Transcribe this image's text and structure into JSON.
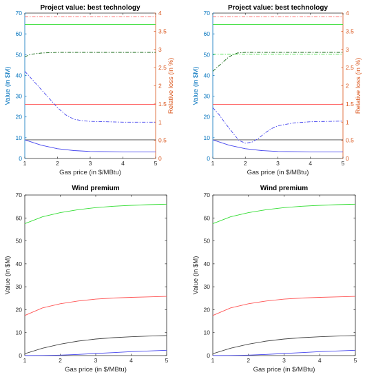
{
  "figure": {
    "background": "#ffffff"
  },
  "colors": {
    "axis_left_top": "#0072bd",
    "axis_right_top": "#d95319",
    "axis_bottom": "#262626",
    "green": "#33dd33",
    "red": "#ff5555",
    "black": "#444444",
    "blue": "#4444ee",
    "dark_green": "#116611"
  },
  "chart_data": [
    {
      "id": "top-left",
      "type": "line",
      "title": "Project value: best technology",
      "xlabel": "Gas price (in $/MBtu)",
      "ylabel": "Value (in $M)",
      "y2label": "Relative loss (in %)",
      "xlim": [
        1,
        5
      ],
      "ylim": [
        0,
        70
      ],
      "y2lim": [
        0,
        4
      ],
      "xticks": [
        "1",
        "2",
        "3",
        "4",
        "5"
      ],
      "yticks": [
        "0",
        "10",
        "20",
        "30",
        "40",
        "50",
        "60",
        "70"
      ],
      "y2ticks": [
        "0",
        "0.5",
        "1",
        "1.5",
        "2",
        "2.5",
        "3",
        "3.5",
        "4"
      ],
      "series": [
        {
          "color": "green",
          "style": "solid",
          "axis": "left",
          "x": [
            1,
            5
          ],
          "y": [
            64.5,
            64.5
          ]
        },
        {
          "color": "red",
          "style": "solid",
          "axis": "left",
          "x": [
            1,
            5
          ],
          "y": [
            26,
            26
          ]
        },
        {
          "color": "black",
          "style": "solid",
          "axis": "left",
          "x": [
            1,
            5
          ],
          "y": [
            9,
            9
          ]
        },
        {
          "color": "blue",
          "style": "solid",
          "axis": "left",
          "x": [
            1,
            1.5,
            2,
            2.5,
            3,
            3.5,
            4,
            4.5,
            5
          ],
          "y": [
            9,
            6.4,
            4.7,
            3.8,
            3.4,
            3.3,
            3.2,
            3.2,
            3.2
          ]
        },
        {
          "color": "red",
          "style": "dashdot",
          "axis": "right",
          "x": [
            1,
            5
          ],
          "y": [
            3.9,
            3.9
          ]
        },
        {
          "color": "dark_green",
          "style": "dashdot",
          "axis": "right",
          "x": [
            1,
            1.2,
            1.5,
            2,
            3,
            4,
            5
          ],
          "y": [
            2.8,
            2.87,
            2.9,
            2.92,
            2.92,
            2.92,
            2.92
          ]
        },
        {
          "color": "blue",
          "style": "dashdot",
          "axis": "right",
          "x": [
            1,
            1.25,
            1.5,
            1.75,
            2,
            2.25,
            2.5,
            2.75,
            3,
            3.5,
            4,
            4.5,
            5
          ],
          "y": [
            2.4,
            2.15,
            1.9,
            1.65,
            1.4,
            1.2,
            1.08,
            1.04,
            1.02,
            1.01,
            1.0,
            1.0,
            1.0
          ]
        }
      ]
    },
    {
      "id": "top-right",
      "type": "line",
      "title": "Project value: best technology",
      "xlabel": "Gas price (in $/MBtu)",
      "ylabel": "Value (in $M)",
      "y2label": "Relative loss (in %)",
      "xlim": [
        1,
        5
      ],
      "ylim": [
        0,
        70
      ],
      "y2lim": [
        0,
        4
      ],
      "xticks": [
        "1",
        "2",
        "3",
        "4",
        "5"
      ],
      "yticks": [
        "0",
        "10",
        "20",
        "30",
        "40",
        "50",
        "60",
        "70"
      ],
      "y2ticks": [
        "0",
        "0.5",
        "1",
        "1.5",
        "2",
        "2.5",
        "3",
        "3.5",
        "4"
      ],
      "series": [
        {
          "color": "green",
          "style": "solid",
          "axis": "left",
          "x": [
            1,
            5
          ],
          "y": [
            64.5,
            64.5
          ]
        },
        {
          "color": "red",
          "style": "solid",
          "axis": "left",
          "x": [
            1,
            5
          ],
          "y": [
            26,
            26
          ]
        },
        {
          "color": "black",
          "style": "solid",
          "axis": "left",
          "x": [
            1,
            5
          ],
          "y": [
            9,
            9
          ]
        },
        {
          "color": "blue",
          "style": "solid",
          "axis": "left",
          "x": [
            1,
            1.5,
            2,
            2.5,
            3,
            3.5,
            4,
            4.5,
            5
          ],
          "y": [
            9,
            6.4,
            4.7,
            3.8,
            3.4,
            3.3,
            3.2,
            3.2,
            3.2
          ]
        },
        {
          "color": "red",
          "style": "dashdot",
          "axis": "right",
          "x": [
            1,
            5
          ],
          "y": [
            3.9,
            3.9
          ]
        },
        {
          "color": "green",
          "style": "dashdot",
          "axis": "right",
          "x": [
            1,
            5
          ],
          "y": [
            2.87,
            2.87
          ]
        },
        {
          "color": "dark_green",
          "style": "dashdot",
          "axis": "right",
          "x": [
            1,
            1.25,
            1.5,
            1.75,
            2,
            2.5,
            3,
            4,
            5
          ],
          "y": [
            2.4,
            2.6,
            2.8,
            2.9,
            2.92,
            2.92,
            2.92,
            2.92,
            2.92
          ]
        },
        {
          "color": "blue",
          "style": "dashdot",
          "axis": "right",
          "x": [
            1,
            1.2,
            1.4,
            1.6,
            1.8,
            2,
            2.2,
            2.4,
            2.6,
            2.8,
            3,
            3.5,
            4,
            4.5,
            5
          ],
          "y": [
            1.4,
            1.2,
            0.95,
            0.72,
            0.5,
            0.42,
            0.45,
            0.55,
            0.7,
            0.82,
            0.9,
            0.98,
            1.01,
            1.02,
            1.03
          ]
        }
      ]
    },
    {
      "id": "bottom-left",
      "type": "line",
      "title": "Wind premium",
      "xlabel": "Gas price (in $/MBtu)",
      "ylabel": "Value (in $M)",
      "xlim": [
        1,
        5
      ],
      "ylim": [
        0,
        70
      ],
      "xticks": [
        "1",
        "2",
        "3",
        "4",
        "5"
      ],
      "yticks": [
        "0",
        "10",
        "20",
        "30",
        "40",
        "50",
        "60",
        "70"
      ],
      "series": [
        {
          "color": "green",
          "style": "solid",
          "axis": "left",
          "x": [
            1,
            1.5,
            2,
            2.5,
            3,
            3.5,
            4,
            4.5,
            5
          ],
          "y": [
            57.5,
            60.5,
            62.3,
            63.6,
            64.5,
            65.1,
            65.5,
            65.8,
            66
          ]
        },
        {
          "color": "red",
          "style": "solid",
          "axis": "left",
          "x": [
            1,
            1.5,
            2,
            2.5,
            3,
            3.5,
            4,
            4.5,
            5
          ],
          "y": [
            17.5,
            20.8,
            22.6,
            23.8,
            24.6,
            25.1,
            25.4,
            25.6,
            25.8
          ]
        },
        {
          "color": "black",
          "style": "solid",
          "axis": "left",
          "x": [
            1,
            1.5,
            2,
            2.5,
            3,
            3.5,
            4,
            4.5,
            5
          ],
          "y": [
            0.8,
            3.2,
            5.0,
            6.3,
            7.2,
            7.8,
            8.2,
            8.5,
            8.7
          ]
        },
        {
          "color": "blue",
          "style": "solid",
          "axis": "left",
          "x": [
            1,
            1.5,
            2,
            2.5,
            3,
            3.5,
            4,
            4.5,
            5
          ],
          "y": [
            0,
            0.05,
            0.2,
            0.5,
            0.9,
            1.3,
            1.7,
            2.0,
            2.3
          ]
        }
      ]
    },
    {
      "id": "bottom-right",
      "type": "line",
      "title": "Wind premium",
      "xlabel": "Gas price (in $/MBtu)",
      "ylabel": "Value (in $M)",
      "xlim": [
        1,
        5
      ],
      "ylim": [
        0,
        70
      ],
      "xticks": [
        "1",
        "2",
        "3",
        "4",
        "5"
      ],
      "yticks": [
        "0",
        "10",
        "20",
        "30",
        "40",
        "50",
        "60",
        "70"
      ],
      "series": [
        {
          "color": "green",
          "style": "solid",
          "axis": "left",
          "x": [
            1,
            1.5,
            2,
            2.5,
            3,
            3.5,
            4,
            4.5,
            5
          ],
          "y": [
            57.5,
            60.5,
            62.3,
            63.6,
            64.5,
            65.1,
            65.5,
            65.8,
            66
          ]
        },
        {
          "color": "red",
          "style": "solid",
          "axis": "left",
          "x": [
            1,
            1.5,
            2,
            2.5,
            3,
            3.5,
            4,
            4.5,
            5
          ],
          "y": [
            17.5,
            20.8,
            22.6,
            23.8,
            24.6,
            25.1,
            25.4,
            25.6,
            25.8
          ]
        },
        {
          "color": "black",
          "style": "solid",
          "axis": "left",
          "x": [
            1,
            1.5,
            2,
            2.5,
            3,
            3.5,
            4,
            4.5,
            5
          ],
          "y": [
            0.8,
            3.2,
            5.0,
            6.3,
            7.2,
            7.8,
            8.2,
            8.5,
            8.7
          ]
        },
        {
          "color": "blue",
          "style": "solid",
          "axis": "left",
          "x": [
            1,
            1.5,
            2,
            2.5,
            3,
            3.5,
            4,
            4.5,
            5
          ],
          "y": [
            0,
            0.05,
            0.2,
            0.5,
            0.9,
            1.3,
            1.7,
            2.0,
            2.3
          ]
        }
      ]
    }
  ]
}
